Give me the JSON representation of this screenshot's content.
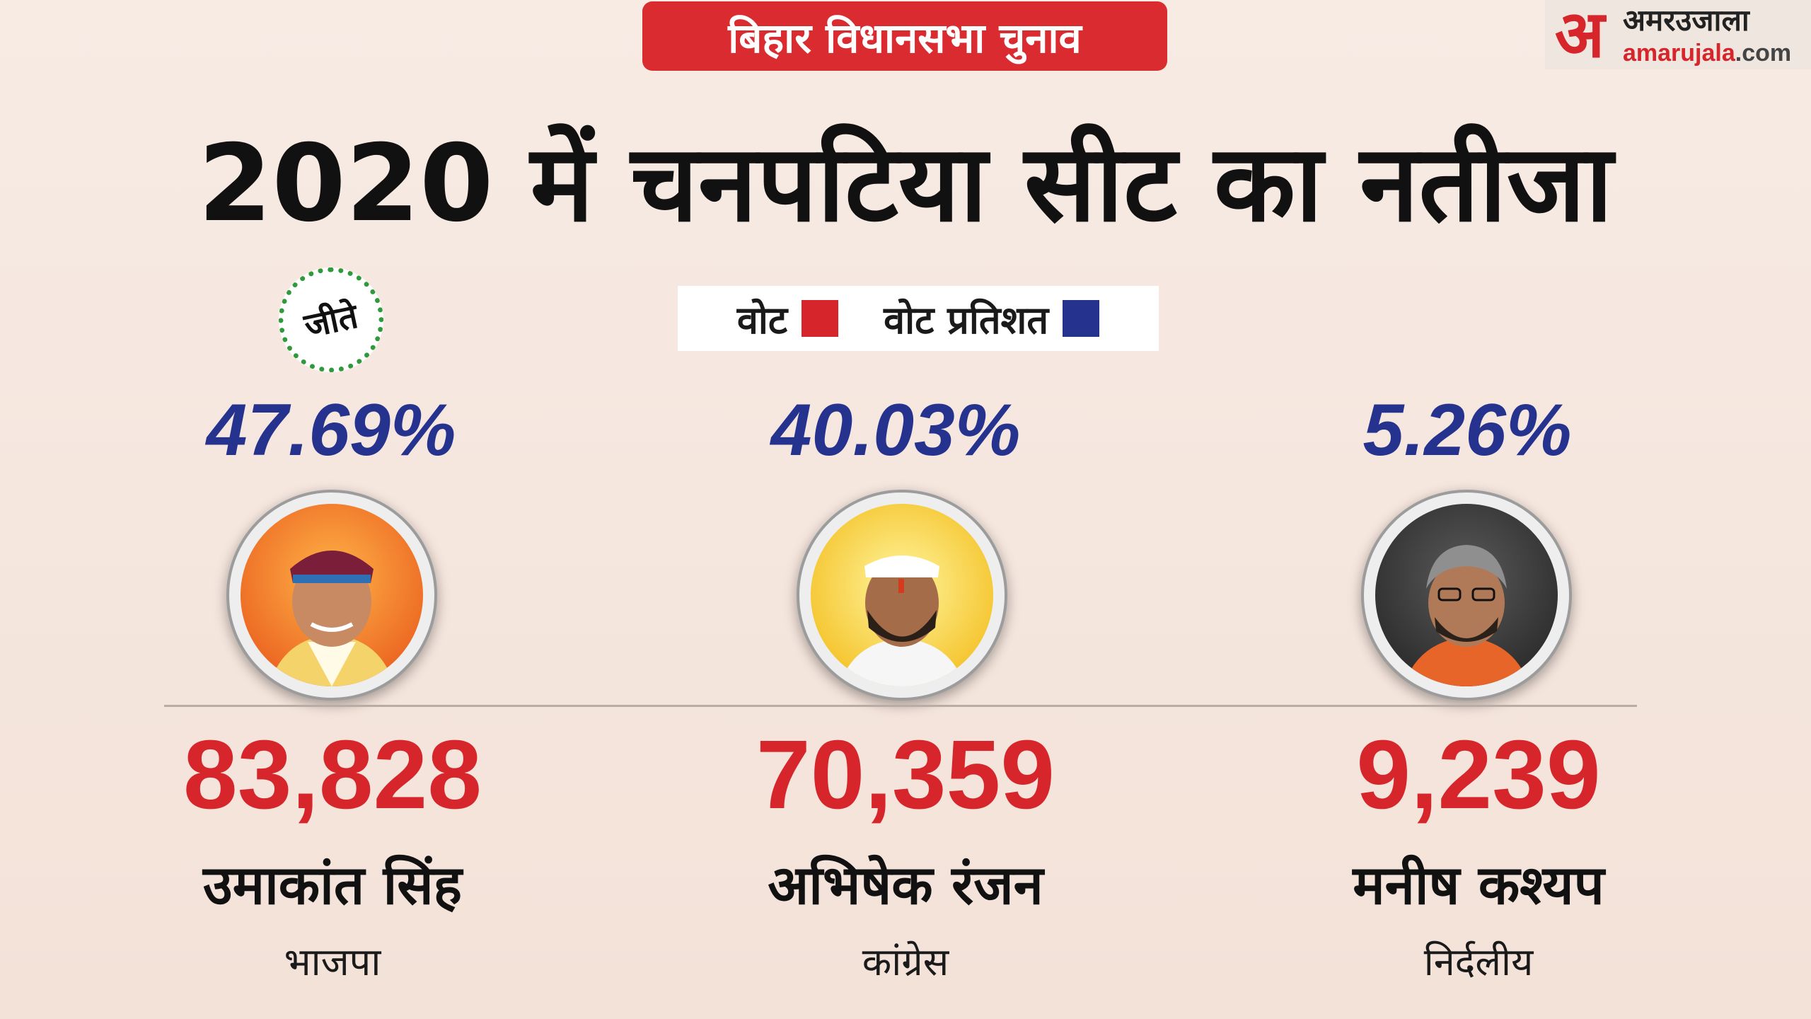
{
  "banner": "बिहार विधानसभा चुनाव",
  "logo": {
    "mark": "अ",
    "hindi": "अमरउजाला",
    "site_a": "amarujala",
    "site_b": ".com"
  },
  "title": "2020 में  चनपटिया सीट का नतीजा",
  "legend": {
    "votes_label": "वोट",
    "votes_color": "#d7262b",
    "percent_label": "वोट प्रतिशत",
    "percent_color": "#25338f"
  },
  "winner_badge": "जीते",
  "candidates": [
    {
      "percent": "47.69%",
      "votes": "83,828",
      "name": "उमाकांत सिंह",
      "party": "भाजपा",
      "winner": true
    },
    {
      "percent": "40.03%",
      "votes": "70,359",
      "name": "अभिषेक रंजन",
      "party": "कांग्रेस",
      "winner": false
    },
    {
      "percent": "5.26%",
      "votes": "9,239",
      "name": "मनीष कश्यप",
      "party": "निर्दलीय",
      "winner": false
    }
  ]
}
